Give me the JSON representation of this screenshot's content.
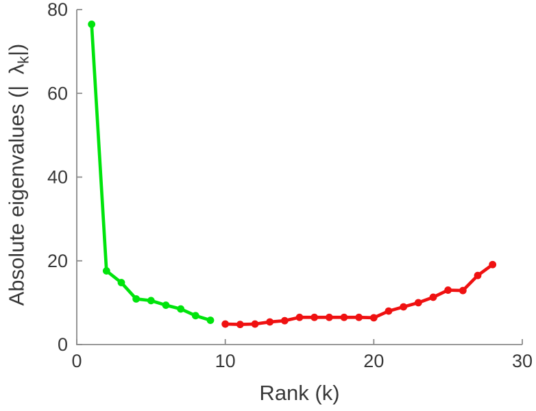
{
  "figure": {
    "background_color": "#ffffff"
  },
  "chart_data": {
    "type": "line",
    "title": "",
    "xlabel": "Rank (k)",
    "ylabel": "Absolute eigenvalues (|λk|)",
    "ylabel_parts": {
      "prefix": "Absolute eigenvalues (|",
      "symbol": "λ",
      "subscript": "k",
      "suffix": "|)"
    },
    "xlim": [
      0,
      30
    ],
    "ylim": [
      0,
      80
    ],
    "xticks": [
      0,
      10,
      20,
      30
    ],
    "yticks": [
      0,
      20,
      40,
      60,
      80
    ],
    "grid": false,
    "legend": "none",
    "axis_color": "#8a8a8a",
    "text_color": "#383838",
    "series": [
      {
        "name": "green-segment",
        "color": "#00e40c",
        "marker": "circle",
        "x": [
          1,
          2,
          3,
          4,
          5,
          6,
          7,
          8,
          9
        ],
        "y": [
          76.5,
          17.6,
          14.8,
          10.9,
          10.5,
          9.4,
          8.5,
          6.9,
          5.8
        ]
      },
      {
        "name": "red-segment",
        "color": "#ef1111",
        "marker": "circle",
        "x": [
          10,
          11,
          12,
          13,
          14,
          15,
          16,
          17,
          18,
          19,
          20,
          21,
          22,
          23,
          24,
          25,
          26,
          27,
          28
        ],
        "y": [
          4.9,
          4.8,
          4.9,
          5.4,
          5.7,
          6.5,
          6.5,
          6.5,
          6.5,
          6.5,
          6.4,
          8.0,
          9.0,
          10.0,
          11.3,
          13.0,
          12.9,
          16.5,
          19.1
        ]
      }
    ]
  }
}
